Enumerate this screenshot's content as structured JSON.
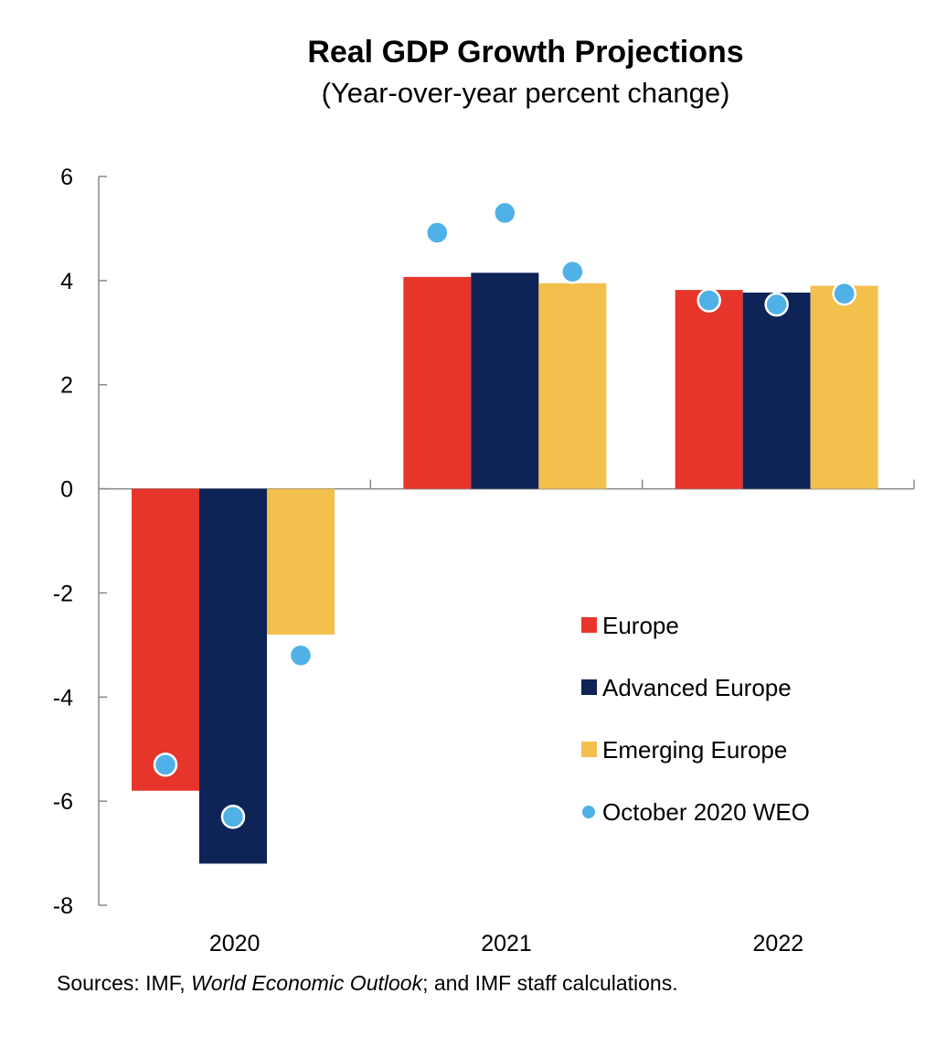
{
  "chart_data": {
    "type": "bar",
    "title": "Real GDP Growth Projections",
    "subtitle": "(Year-over-year  percent change)",
    "categories": [
      "2020",
      "2021",
      "2022"
    ],
    "series": [
      {
        "name": "Europe",
        "color": "#e8352c",
        "values": [
          -5.8,
          4.07,
          3.82
        ]
      },
      {
        "name": "Advanced Europe",
        "color": "#0e2356",
        "values": [
          -7.2,
          4.15,
          3.77
        ]
      },
      {
        "name": "Emerging Europe",
        "color": "#f3c04e",
        "values": [
          -2.8,
          3.95,
          3.9
        ]
      }
    ],
    "markers": {
      "name": "October 2020 WEO",
      "color": "#4fb1e6",
      "values": [
        [
          -5.3,
          -6.3,
          -3.2
        ],
        [
          4.92,
          5.3,
          4.17
        ],
        [
          3.62,
          3.54,
          3.75
        ]
      ]
    },
    "ylim": [
      -8,
      6
    ],
    "yticks": [
      "6",
      "4",
      "2",
      "0",
      "-2",
      "-4",
      "-6",
      "-8"
    ],
    "xlabel": "",
    "ylabel": "",
    "legend_position": "lower-right"
  },
  "source": {
    "prefix": "Sources: IMF, ",
    "italic": "World Economic Outlook",
    "suffix": "; and IMF staff calculations."
  }
}
